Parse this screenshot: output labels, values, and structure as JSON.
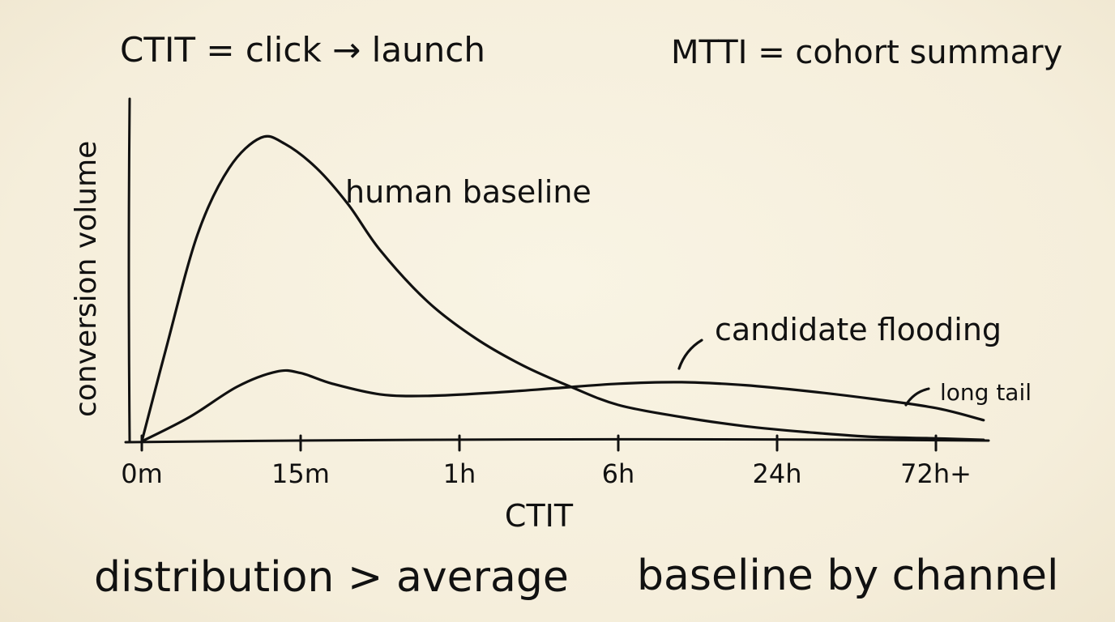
{
  "notes": {
    "top_left": "CTIT = click → launch",
    "top_right": "MTTI = cohort summary",
    "bottom_left": "distribution > average",
    "bottom_right": "baseline by channel"
  },
  "chart_data": {
    "type": "line",
    "xlabel": "CTIT",
    "ylabel": "conversion volume",
    "x_ticks": [
      "0m",
      "15m",
      "1h",
      "6h",
      "24h",
      "72h+"
    ],
    "series": [
      {
        "name": "human baseline",
        "points": [
          [
            0,
            0.0
          ],
          [
            0.15,
            0.3
          ],
          [
            0.35,
            0.68
          ],
          [
            0.55,
            0.9
          ],
          [
            0.75,
            1.0
          ],
          [
            0.9,
            0.98
          ],
          [
            1.1,
            0.9
          ],
          [
            1.3,
            0.78
          ],
          [
            1.5,
            0.63
          ],
          [
            1.8,
            0.46
          ],
          [
            2.1,
            0.34
          ],
          [
            2.4,
            0.25
          ],
          [
            2.7,
            0.18
          ],
          [
            3.0,
            0.12
          ],
          [
            3.4,
            0.08
          ],
          [
            3.8,
            0.05
          ],
          [
            4.2,
            0.03
          ],
          [
            4.6,
            0.015
          ],
          [
            5.0,
            0.01
          ],
          [
            5.3,
            0.005
          ]
        ]
      },
      {
        "name": "candidate flooding",
        "points": [
          [
            0,
            0.0
          ],
          [
            0.3,
            0.08
          ],
          [
            0.6,
            0.18
          ],
          [
            0.85,
            0.23
          ],
          [
            1.0,
            0.225
          ],
          [
            1.2,
            0.19
          ],
          [
            1.5,
            0.155
          ],
          [
            1.8,
            0.15
          ],
          [
            2.2,
            0.16
          ],
          [
            2.6,
            0.175
          ],
          [
            3.0,
            0.19
          ],
          [
            3.4,
            0.195
          ],
          [
            3.8,
            0.185
          ],
          [
            4.2,
            0.165
          ],
          [
            4.6,
            0.14
          ],
          [
            5.0,
            0.11
          ],
          [
            5.3,
            0.07
          ]
        ]
      }
    ],
    "annotations": [
      "human baseline",
      "candidate flooding",
      "long tail"
    ],
    "grid": false,
    "legend": "none (inline labels)"
  }
}
